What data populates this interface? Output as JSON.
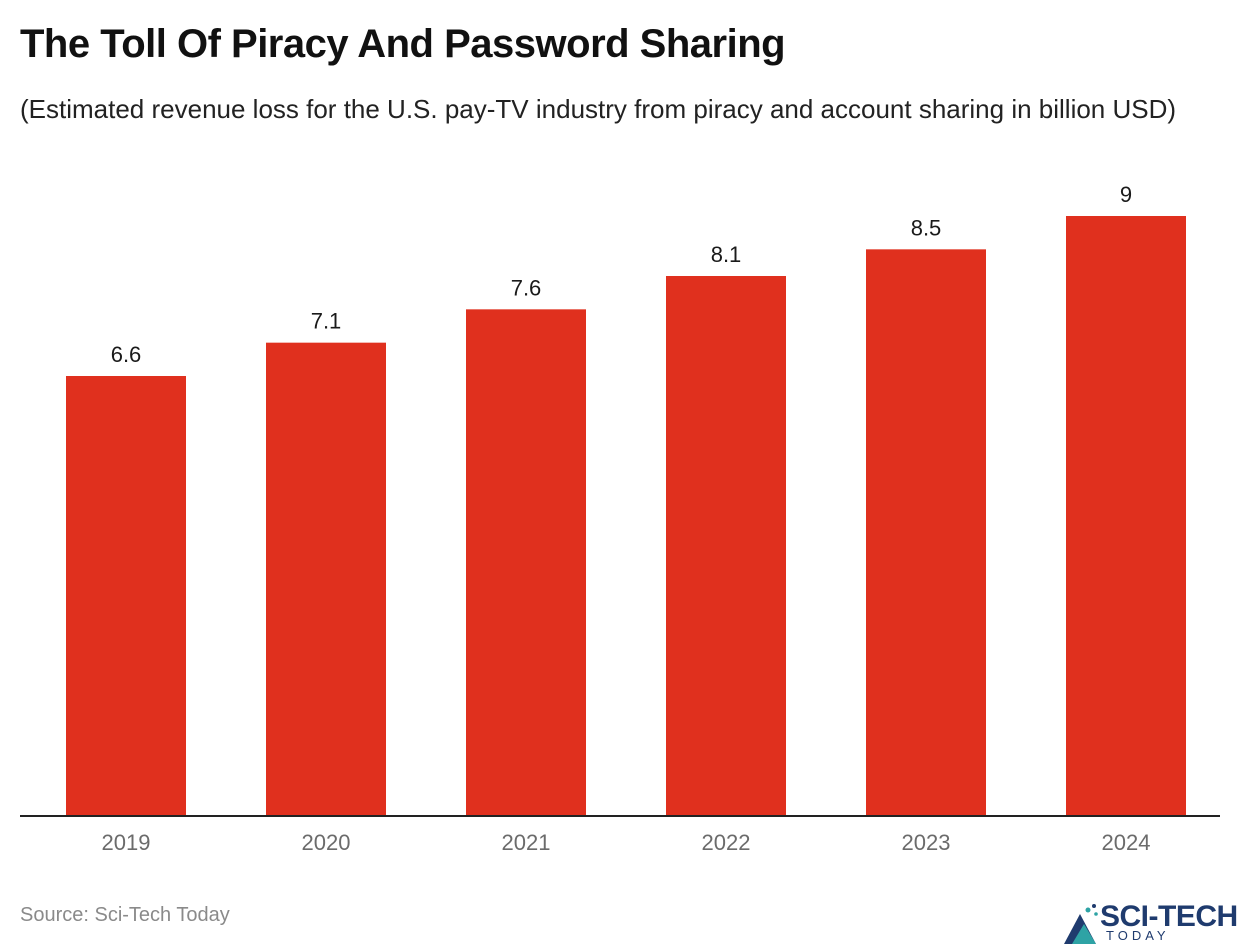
{
  "chart_data": {
    "type": "bar",
    "title": "The Toll Of Piracy And Password Sharing",
    "subtitle": "(Estimated revenue loss for the U.S. pay-TV industry from piracy and account sharing in billion USD)",
    "categories": [
      "2019",
      "2020",
      "2021",
      "2022",
      "2023",
      "2024"
    ],
    "values": [
      6.6,
      7.1,
      7.6,
      8.1,
      8.5,
      9
    ],
    "data_labels": [
      "6.6",
      "7.1",
      "7.6",
      "8.1",
      "8.5",
      "9"
    ],
    "xlabel": "",
    "ylabel": "",
    "ylim": [
      0,
      9
    ],
    "grid": false,
    "legend": "none",
    "bar_color": "#e0301e"
  },
  "footer": {
    "source": "Source: Sci-Tech Today",
    "logo_main": "SCI-TECH",
    "logo_sub": "TODAY"
  }
}
